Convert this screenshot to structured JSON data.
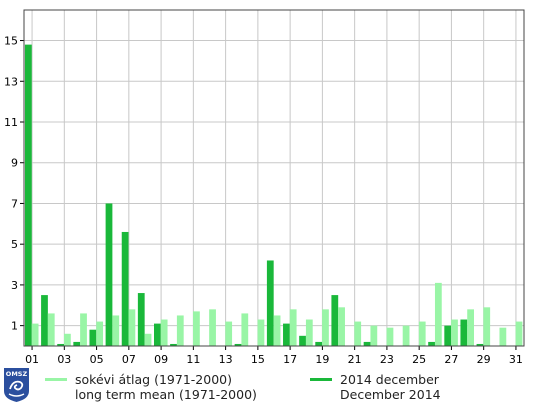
{
  "chart_data": {
    "type": "bar",
    "categories": [
      "01",
      "02",
      "03",
      "04",
      "05",
      "06",
      "07",
      "08",
      "09",
      "10",
      "11",
      "12",
      "13",
      "14",
      "15",
      "16",
      "17",
      "18",
      "19",
      "20",
      "21",
      "22",
      "23",
      "24",
      "25",
      "26",
      "27",
      "28",
      "29",
      "30",
      "31"
    ],
    "x_tick_labels": [
      "01",
      "03",
      "05",
      "07",
      "09",
      "11",
      "13",
      "15",
      "17",
      "19",
      "21",
      "23",
      "25",
      "27",
      "29",
      "31"
    ],
    "y_tick_labels": [
      "1",
      "3",
      "5",
      "7",
      "9",
      "11",
      "13",
      "15"
    ],
    "ylim": [
      0,
      16.5
    ],
    "grid": true,
    "legend_position": "bottom",
    "series": [
      {
        "key": "mean",
        "name_hu": "sokévi átlag (1971-2000)",
        "name_en": "long term mean (1971-2000)",
        "color": "#99f5a6",
        "values": [
          1.1,
          1.6,
          0.6,
          1.6,
          1.2,
          1.5,
          1.8,
          0.6,
          1.3,
          1.5,
          1.7,
          1.8,
          1.2,
          1.6,
          1.3,
          1.5,
          1.8,
          1.3,
          1.8,
          1.9,
          1.2,
          1.0,
          0.9,
          1.0,
          1.2,
          3.1,
          1.3,
          1.8,
          1.9,
          0.9,
          1.2
        ]
      },
      {
        "key": "actual",
        "name_hu": "2014 december",
        "name_en": "December 2014",
        "color": "#1ab83a",
        "values": [
          14.8,
          2.5,
          0.1,
          0.2,
          0.8,
          7.0,
          5.6,
          2.6,
          1.1,
          0.1,
          0.0,
          0.0,
          0.0,
          0.1,
          0.0,
          4.2,
          1.1,
          0.5,
          0.2,
          2.5,
          0.0,
          0.2,
          0.0,
          0.0,
          0.0,
          0.2,
          1.0,
          1.3,
          0.1,
          0.0,
          0.0
        ]
      }
    ]
  },
  "logo": {
    "text": "OMSZ",
    "color": "#2b4f9e"
  }
}
